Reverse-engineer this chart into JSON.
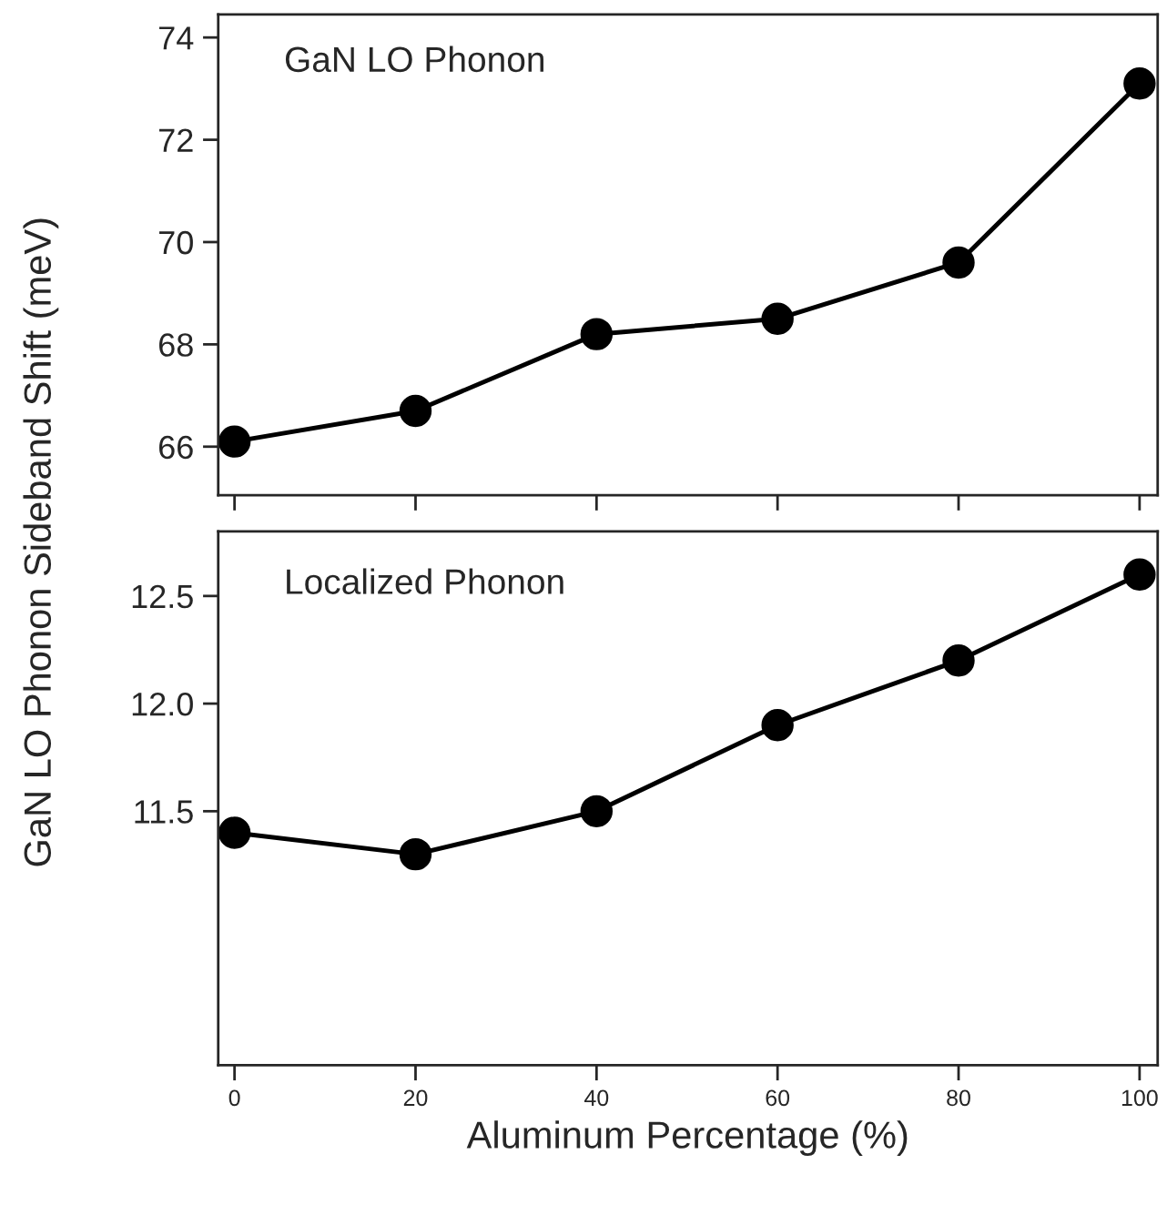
{
  "chart_data": [
    {
      "type": "line",
      "ylabel": "GaN LO Phonon Sideband Shift (meV)",
      "annotations": [
        "GaN LO Phonon"
      ],
      "x": [
        0,
        20,
        40,
        60,
        80,
        100
      ],
      "series": [
        {
          "color": "#000000",
          "values": [
            66.1,
            66.7,
            68.2,
            68.5,
            69.6,
            73.1
          ]
        }
      ],
      "xlim": [
        -1.8,
        102
      ],
      "xticks": [
        0,
        20,
        40,
        60,
        80,
        100
      ],
      "ylim": [
        65.05,
        74.45
      ],
      "yticks": [
        66,
        68,
        70,
        72,
        74
      ],
      "tick_labels": "y",
      "marker": "circle",
      "line_style": "solid",
      "grid": false,
      "legend": false
    },
    {
      "type": "line",
      "xlabel": "Aluminum Percentage (%)",
      "annotations": [
        "Localized Phonon"
      ],
      "x": [
        0,
        20,
        40,
        60,
        80,
        100
      ],
      "series": [
        {
          "color": "#000000",
          "values": [
            11.4,
            11.3,
            11.5,
            11.9,
            12.2,
            12.6
          ]
        }
      ],
      "xlim": [
        -1.8,
        102
      ],
      "xticks": [
        0,
        20,
        40,
        60,
        80,
        100
      ],
      "ylim": [
        10.32,
        12.8
      ],
      "yticks": [
        11.5,
        {
          "value": 12,
          "label": "12.0"
        },
        12.5
      ],
      "marker": "circle",
      "line_style": "solid",
      "grid": false,
      "legend": false
    }
  ]
}
